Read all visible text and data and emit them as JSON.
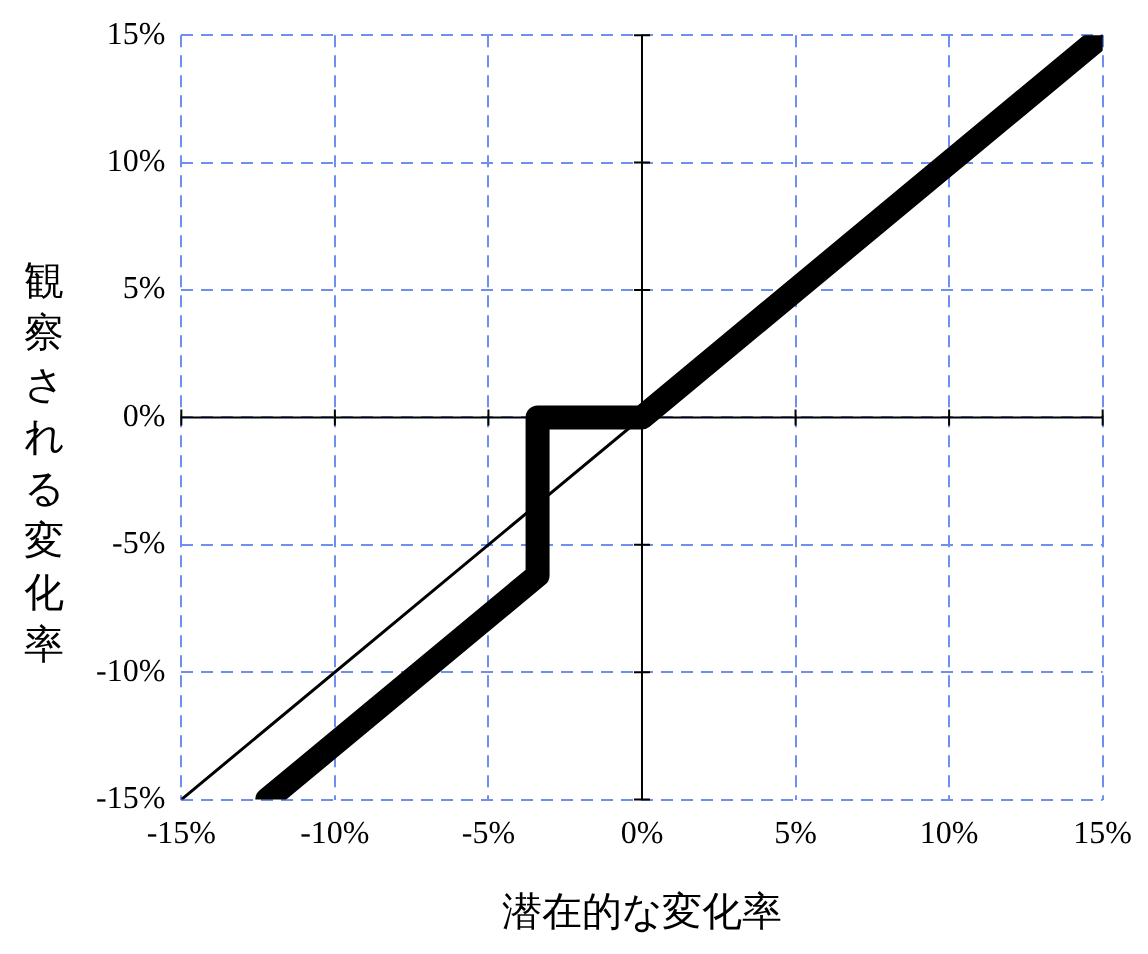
{
  "chart_data": {
    "type": "line",
    "xlabel": "潜在的な変化率",
    "ylabel": "観察される変化率",
    "xlim": [
      -15,
      15
    ],
    "ylim": [
      -15,
      15
    ],
    "xticks": [
      {
        "value": -15,
        "label": "-15%"
      },
      {
        "value": -10,
        "label": "-10%"
      },
      {
        "value": -5,
        "label": "-5%"
      },
      {
        "value": 0,
        "label": "0%"
      },
      {
        "value": 5,
        "label": "5%"
      },
      {
        "value": 10,
        "label": "10%"
      },
      {
        "value": 15,
        "label": "15%"
      }
    ],
    "yticks": [
      {
        "value": -15,
        "label": "-15%"
      },
      {
        "value": -10,
        "label": "-10%"
      },
      {
        "value": -5,
        "label": "-5%"
      },
      {
        "value": 0,
        "label": "0%"
      },
      {
        "value": 5,
        "label": "5%"
      },
      {
        "value": 10,
        "label": "10%"
      },
      {
        "value": 15,
        "label": "15%"
      }
    ],
    "series": [
      {
        "color": "#000000",
        "x": [
          -15,
          15
        ],
        "values": [
          -15,
          15
        ]
      },
      {
        "color": "#000000",
        "x": [
          -12.2,
          -3.4,
          -3.4,
          0,
          15
        ],
        "values": [
          -15,
          -6.2,
          0,
          0,
          15
        ]
      }
    ],
    "grid": true,
    "legend": false,
    "marker": "none",
    "line_style": "solid"
  }
}
